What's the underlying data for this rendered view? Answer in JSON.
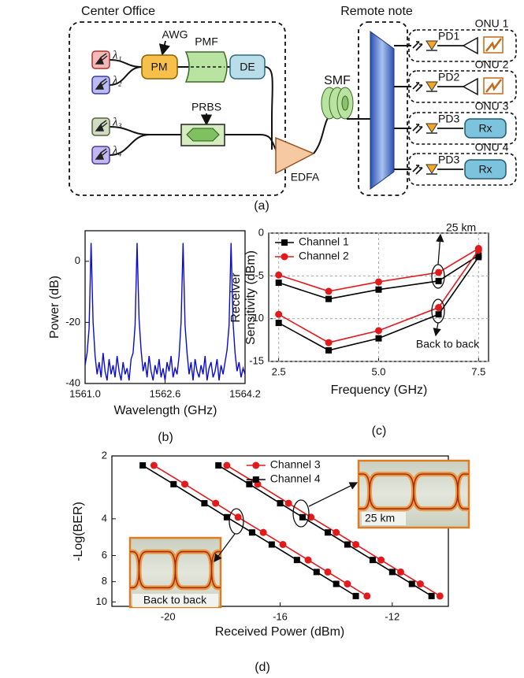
{
  "diagram": {
    "center_office": "Center Office",
    "remote_node": "Remote note",
    "awg": "AWG",
    "pm": "PM",
    "pmf": "PMF",
    "de": "DE",
    "prbs": "PRBS",
    "smf": "SMF",
    "edfa": "EDFA",
    "lasers": [
      "λ₁",
      "λ₂",
      "λ₃",
      "λ₄"
    ],
    "onus": [
      {
        "label": "ONU 1",
        "pd": "PD1"
      },
      {
        "label": "ONU 2",
        "pd": "PD2"
      },
      {
        "label": "ONU 3",
        "pd": "PD3",
        "rx": "Rx"
      },
      {
        "label": "ONU 4",
        "pd": "PD3",
        "rx": "Rx"
      }
    ],
    "caption": "(a)"
  },
  "chart_data": [
    {
      "type": "line",
      "caption": "(b)",
      "xlabel": "Wavelength (GHz)",
      "ylabel": "Power (dB)",
      "color": "#0a0ad0",
      "grid": false,
      "xlim": [
        1561.0,
        1564.2
      ],
      "xticks": [
        {
          "value": 1561.0,
          "label": "1561.0"
        },
        1562.6,
        1564.2
      ],
      "ylim": [
        -40,
        10
      ],
      "yticks": [
        -40,
        -20,
        0
      ],
      "x": [
        1561.0,
        1561.04,
        1561.08,
        1561.12,
        1561.16,
        1561.2,
        1561.24,
        1561.28,
        1561.32,
        1561.36,
        1561.4,
        1561.44,
        1561.48,
        1561.52,
        1561.56,
        1561.6,
        1561.64,
        1561.68,
        1561.72,
        1561.76,
        1561.8,
        1561.84,
        1561.88,
        1561.92,
        1561.96,
        1562.0,
        1562.04,
        1562.08,
        1562.12,
        1562.16,
        1562.2,
        1562.24,
        1562.28,
        1562.32,
        1562.36,
        1562.4,
        1562.44,
        1562.48,
        1562.52,
        1562.56,
        1562.6,
        1562.64,
        1562.68,
        1562.72,
        1562.76,
        1562.8,
        1562.84,
        1562.88,
        1562.92,
        1562.96,
        1563.0,
        1563.04,
        1563.08,
        1563.12,
        1563.16,
        1563.2,
        1563.24,
        1563.28,
        1563.32,
        1563.36,
        1563.4,
        1563.44,
        1563.48,
        1563.52,
        1563.56,
        1563.6,
        1563.64,
        1563.68,
        1563.72,
        1563.76,
        1563.8,
        1563.84,
        1563.88,
        1563.92,
        1563.96,
        1564.0,
        1564.04,
        1564.08,
        1564.12,
        1564.16,
        1564.2
      ],
      "values": [
        -34,
        -30,
        -22,
        6,
        -20,
        -31,
        -37,
        -33,
        -38,
        -30,
        -36,
        -39,
        -32,
        -37,
        -34,
        -38,
        -31,
        -36,
        -39,
        -33,
        -37,
        -35,
        -39,
        -32,
        -30,
        -21,
        6,
        -19,
        -29,
        -36,
        -33,
        -38,
        -31,
        -36,
        -39,
        -34,
        -37,
        -32,
        -38,
        -35,
        -39,
        -33,
        -36,
        -31,
        -38,
        -35,
        -37,
        -31,
        -20,
        6,
        -21,
        -30,
        -37,
        -33,
        -39,
        -32,
        -36,
        -38,
        -34,
        -37,
        -31,
        -39,
        -35,
        -33,
        -38,
        -36,
        -32,
        -39,
        -34,
        -37,
        -33,
        -29,
        -21,
        6,
        -20,
        -30,
        -36,
        -33,
        -38,
        -35,
        -37
      ]
    },
    {
      "type": "line",
      "caption": "(c)",
      "xlabel": "Frequency (GHz)",
      "ylabel": [
        "Receiver",
        "Sensitivity (dBm)"
      ],
      "grid": true,
      "legend": "upper left",
      "xlim": [
        2.25,
        7.75
      ],
      "xticks": [
        2.5,
        {
          "value": 5.0,
          "label": "5.0"
        },
        7.5
      ],
      "ylim": [
        -15,
        0
      ],
      "yticks": [
        -15,
        -10,
        -5,
        0
      ],
      "x": [
        2.5,
        3.75,
        5.0,
        6.5,
        7.5
      ],
      "series": [
        {
          "name": "Channel 1",
          "color": "#000000",
          "marker": "square",
          "curves": [
            {
              "values": [
                -5.8,
                -7.7,
                -6.6,
                -5.6,
                -2.6
              ]
            },
            {
              "values": [
                -10.5,
                -13.7,
                -12.3,
                -9.5,
                -2.8
              ]
            }
          ]
        },
        {
          "name": "Channel 2",
          "color": "#e31a1c",
          "marker": "circle",
          "curves": [
            {
              "values": [
                -4.9,
                -6.8,
                -5.7,
                -4.6,
                -1.8
              ]
            },
            {
              "values": [
                -9.5,
                -12.8,
                -11.4,
                -8.7,
                -2.0
              ]
            }
          ]
        }
      ],
      "annotations": [
        "25 km",
        "Back to back"
      ]
    },
    {
      "type": "line",
      "caption": "(d)",
      "xlabel": "Received Power (dBm)",
      "ylabel": "-Log(BER)",
      "grid": false,
      "legend": "upper center",
      "xlim": [
        -22,
        -10
      ],
      "xticks": [
        -20,
        -16,
        -12
      ],
      "ylim": [
        2,
        10.5
      ],
      "yscale": "log",
      "y_inverted": true,
      "yticks": [
        2,
        4,
        6,
        8,
        10
      ],
      "series": [
        {
          "name": "Channel 3",
          "color": "#e31a1c",
          "marker": "circle",
          "curves": [
            {
              "x": [
                -17.9,
                -16.8,
                -15.7,
                -14.9,
                -14.0,
                -13.3,
                -12.4,
                -11.7,
                -11.0,
                -10.3
              ],
              "values": [
                2.22,
                2.73,
                3.37,
                3.93,
                4.65,
                5.31,
                6.3,
                7.19,
                8.2,
                9.37
              ]
            },
            {
              "x": [
                -20.5,
                -19.4,
                -18.3,
                -17.5,
                -16.6,
                -15.9,
                -15.0,
                -14.3,
                -13.6,
                -12.9
              ],
              "values": [
                2.22,
                2.73,
                3.37,
                3.93,
                4.65,
                5.31,
                6.3,
                7.19,
                8.2,
                9.37
              ]
            }
          ]
        },
        {
          "name": "Channel 4",
          "color": "#000000",
          "marker": "square",
          "curves": [
            {
              "x": [
                -18.2,
                -17.1,
                -16.0,
                -15.2,
                -14.3,
                -13.6,
                -12.7,
                -12.0,
                -11.3,
                -10.6
              ],
              "values": [
                2.22,
                2.73,
                3.37,
                3.93,
                4.65,
                5.31,
                6.3,
                7.19,
                8.2,
                9.37
              ]
            },
            {
              "x": [
                -20.9,
                -19.8,
                -18.7,
                -17.9,
                -17.0,
                -16.3,
                -15.4,
                -14.7,
                -14.0,
                -13.3
              ],
              "values": [
                2.22,
                2.73,
                3.37,
                3.93,
                4.65,
                5.31,
                6.3,
                7.19,
                8.2,
                9.37
              ]
            }
          ]
        }
      ],
      "annotations": [
        "25 km",
        "Back to back"
      ]
    }
  ]
}
